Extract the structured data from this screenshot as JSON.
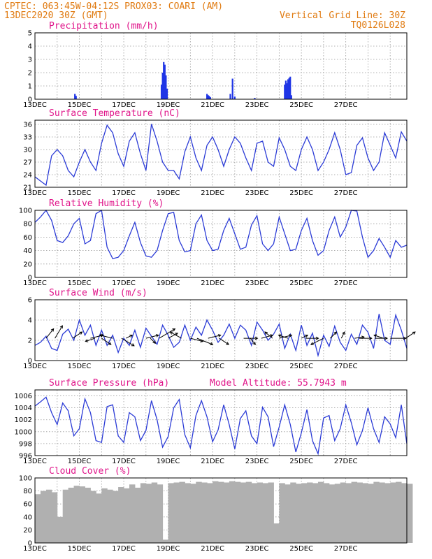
{
  "header": {
    "line1": "CPTEC:   063:45W-04:12S   PROX03: COARI (AM)",
    "line2": "13DEC2020 30Z (GMT)",
    "grid_note": "Vertical Grid Line: 30Z",
    "code": "TQ0126L028"
  },
  "colors": {
    "header": "#e07a10",
    "panel_title": "#e0158a",
    "line": "#2b3bd6",
    "bar": "#1f35e6",
    "cloud": "#b0b0b0"
  },
  "chart_data": [
    {
      "type": "bar",
      "title": "Precipitation (mm/h)",
      "ylim": [
        0,
        5
      ],
      "yticks": [
        0,
        1,
        2,
        3,
        4,
        5
      ],
      "xticklabels": [
        "13DEC",
        "15DEC",
        "17DEC",
        "19DEC",
        "21DEC",
        "23DEC",
        "25DEC",
        "27DEC"
      ],
      "x": [
        1.8,
        1.85,
        5.7,
        5.75,
        5.8,
        5.85,
        5.9,
        5.95,
        7.75,
        7.8,
        7.85,
        7.9,
        8.8,
        8.9,
        9.0,
        9.9,
        11.25,
        11.3,
        11.35,
        11.4,
        11.45,
        11.5,
        11.55
      ],
      "values": [
        0.4,
        0.25,
        1.1,
        2.0,
        2.8,
        2.6,
        1.8,
        0.8,
        0.4,
        0.3,
        0.25,
        0.15,
        0.4,
        1.55,
        0.2,
        0.1,
        1.1,
        1.4,
        1.2,
        1.5,
        1.6,
        1.7,
        0.3
      ]
    },
    {
      "type": "line",
      "title": "Surface Temperature (nC)",
      "ylim": [
        21,
        37
      ],
      "yticks": [
        21,
        24,
        27,
        30,
        33,
        36
      ],
      "xticklabels": [
        "13DEC",
        "15DEC",
        "17DEC",
        "19DEC",
        "21DEC",
        "23DEC",
        "25DEC",
        "27DEC"
      ],
      "x": [
        0,
        0.25,
        0.5,
        0.75,
        1.0,
        1.25,
        1.5,
        1.75,
        2.0,
        2.25,
        2.5,
        2.75,
        3.0,
        3.25,
        3.5,
        3.75,
        4.0,
        4.25,
        4.5,
        4.75,
        5.0,
        5.25,
        5.5,
        5.75,
        6.0,
        6.25,
        6.5,
        6.75,
        7.0,
        7.25,
        7.5,
        7.75,
        8.0,
        8.25,
        8.5,
        8.75,
        9.0,
        9.25,
        9.5,
        9.75,
        10.0,
        10.25,
        10.5,
        10.75,
        11.0,
        11.25,
        11.5,
        11.75,
        12.0,
        12.25,
        12.5,
        12.75,
        13.0,
        13.25,
        13.5,
        13.75,
        14.0,
        14.25,
        14.5,
        14.75,
        15.0,
        15.25,
        15.5,
        15.75,
        16.0,
        16.25,
        16.5,
        16.75
      ],
      "values": [
        23.5,
        22.5,
        21.5,
        28.5,
        30,
        28.5,
        25,
        23.5,
        27,
        30,
        27,
        25,
        31.5,
        35.8,
        34,
        29,
        26,
        32,
        34,
        29,
        25,
        36.1,
        32,
        27,
        25,
        25,
        23,
        29.5,
        33,
        28,
        25,
        31,
        33,
        30,
        26,
        30,
        33,
        31.5,
        28,
        25,
        31.5,
        32,
        27,
        26,
        32.8,
        30,
        26,
        25,
        30,
        33,
        30,
        25,
        27,
        30,
        34,
        30,
        24,
        24.5,
        31,
        32.8,
        28,
        25,
        27,
        34,
        31,
        28,
        34.2,
        32
      ]
    },
    {
      "type": "line",
      "title": "Relative Humidity (%)",
      "ylim": [
        0,
        100
      ],
      "yticks": [
        0,
        20,
        40,
        60,
        80,
        100
      ],
      "xticklabels": [
        "13DEC",
        "15DEC",
        "17DEC",
        "19DEC",
        "21DEC",
        "23DEC",
        "25DEC",
        "27DEC"
      ],
      "x": [
        0,
        0.25,
        0.5,
        0.75,
        1.0,
        1.25,
        1.5,
        1.75,
        2.0,
        2.25,
        2.5,
        2.75,
        3.0,
        3.25,
        3.5,
        3.75,
        4.0,
        4.25,
        4.5,
        4.75,
        5.0,
        5.25,
        5.5,
        5.75,
        6.0,
        6.25,
        6.5,
        6.75,
        7.0,
        7.25,
        7.5,
        7.75,
        8.0,
        8.25,
        8.5,
        8.75,
        9.0,
        9.25,
        9.5,
        9.75,
        10.0,
        10.25,
        10.5,
        10.75,
        11.0,
        11.25,
        11.5,
        11.75,
        12.0,
        12.25,
        12.5,
        12.75,
        13.0,
        13.25,
        13.5,
        13.75,
        14.0,
        14.25,
        14.5,
        14.75,
        15.0,
        15.25,
        15.5,
        15.75,
        16.0,
        16.25,
        16.5,
        16.75
      ],
      "values": [
        82,
        90,
        100,
        85,
        55,
        52,
        62,
        80,
        88,
        50,
        55,
        95,
        100,
        45,
        28,
        30,
        40,
        62,
        82,
        52,
        32,
        30,
        40,
        70,
        95,
        97,
        55,
        38,
        40,
        80,
        93,
        55,
        40,
        42,
        70,
        88,
        65,
        42,
        45,
        78,
        92,
        50,
        40,
        50,
        90,
        65,
        40,
        42,
        70,
        88,
        55,
        33,
        40,
        70,
        90,
        60,
        75,
        100,
        99,
        60,
        30,
        40,
        58,
        45,
        30,
        55,
        45,
        48
      ]
    },
    {
      "type": "line",
      "title": "Surface Wind (m/s)",
      "ylim": [
        0,
        6
      ],
      "yticks": [
        0,
        2,
        4,
        6
      ],
      "xticklabels": [
        "13DEC",
        "15DEC",
        "17DEC",
        "19DEC",
        "21DEC",
        "23DEC",
        "25DEC",
        "27DEC"
      ],
      "x": [
        0,
        0.25,
        0.5,
        0.75,
        1.0,
        1.25,
        1.5,
        1.75,
        2.0,
        2.25,
        2.5,
        2.75,
        3.0,
        3.25,
        3.5,
        3.75,
        4.0,
        4.25,
        4.5,
        4.75,
        5.0,
        5.25,
        5.5,
        5.75,
        6.0,
        6.25,
        6.5,
        6.75,
        7.0,
        7.25,
        7.5,
        7.75,
        8.0,
        8.25,
        8.5,
        8.75,
        9.0,
        9.25,
        9.5,
        9.75,
        10.0,
        10.25,
        10.5,
        10.75,
        11.0,
        11.25,
        11.5,
        11.75,
        12.0,
        12.25,
        12.5,
        12.75,
        13.0,
        13.25,
        13.5,
        13.75,
        14.0,
        14.25,
        14.5,
        14.75,
        15.0,
        15.25,
        15.5,
        15.75,
        16.0,
        16.25,
        16.5,
        16.75
      ],
      "values": [
        1.5,
        1.8,
        2.4,
        1.2,
        1.0,
        2.6,
        3.1,
        2.0,
        4.0,
        2.5,
        3.5,
        1.5,
        3.0,
        1.5,
        2.5,
        0.8,
        2.2,
        1.5,
        3.0,
        1.3,
        3.2,
        2.4,
        1.6,
        3.5,
        2.5,
        1.3,
        1.8,
        3.5,
        2.0,
        3.3,
        2.5,
        4.0,
        3.0,
        1.8,
        2.5,
        3.6,
        2.2,
        3.5,
        3.0,
        1.5,
        3.8,
        3.0,
        2.0,
        2.6,
        3.6,
        1.2,
        2.6,
        1.0,
        3.5,
        1.5,
        2.7,
        0.5,
        2.5,
        1.4,
        3.4,
        1.8,
        1.0,
        2.6,
        1.6,
        3.5,
        2.8,
        1.2,
        4.6,
        2.0,
        1.6,
        4.5,
        3.0,
        1.2
      ]
    },
    {
      "type": "line",
      "title": "Surface Pressure (hPa)",
      "annotation": "Model Altitude: 55.7943 m",
      "ylim": [
        996,
        1007
      ],
      "yticks": [
        996,
        998,
        1000,
        1002,
        1004,
        1006
      ],
      "xticklabels": [
        "13DEC",
        "15DEC",
        "17DEC",
        "19DEC",
        "21DEC",
        "23DEC",
        "25DEC",
        "27DEC"
      ],
      "x": [
        0,
        0.25,
        0.5,
        0.75,
        1.0,
        1.25,
        1.5,
        1.75,
        2.0,
        2.25,
        2.5,
        2.75,
        3.0,
        3.25,
        3.5,
        3.75,
        4.0,
        4.25,
        4.5,
        4.75,
        5.0,
        5.25,
        5.5,
        5.75,
        6.0,
        6.25,
        6.5,
        6.75,
        7.0,
        7.25,
        7.5,
        7.75,
        8.0,
        8.25,
        8.5,
        8.75,
        9.0,
        9.25,
        9.5,
        9.75,
        10.0,
        10.25,
        10.5,
        10.75,
        11.0,
        11.25,
        11.5,
        11.75,
        12.0,
        12.25,
        12.5,
        12.75,
        13.0,
        13.25,
        13.5,
        13.75,
        14.0,
        14.25,
        14.5,
        14.75,
        15.0,
        15.25,
        15.5,
        15.75,
        16.0,
        16.25,
        16.5,
        16.75
      ],
      "values": [
        1004.3,
        1005,
        1005.8,
        1003.2,
        1001.2,
        1004.8,
        1003.5,
        999.3,
        1000.5,
        1005.5,
        1003.2,
        998.5,
        998.2,
        1004.2,
        1004.5,
        999.3,
        998.2,
        1003.2,
        1002.5,
        998.5,
        1000.2,
        1005.2,
        1002,
        997.4,
        999.2,
        1004,
        1005.4,
        999.5,
        997.3,
        1002.7,
        1005.2,
        1002.5,
        998.3,
        1000.3,
        1004.5,
        1001.2,
        997.1,
        1002.2,
        1003.5,
        999.3,
        998,
        1004.1,
        1002.5,
        997.5,
        1000.8,
        1004.5,
        1001.2,
        996.6,
        999.8,
        1003.7,
        998.5,
        996.3,
        1002.3,
        1002.7,
        998.5,
        1000.5,
        1004.5,
        1001.5,
        997.8,
        1000.2,
        1004,
        1000.5,
        998.2,
        1002.5,
        1001.3,
        999,
        1004.5,
        998
      ]
    },
    {
      "type": "bar",
      "title": "Cloud Cover (%)",
      "ylim": [
        0,
        100
      ],
      "yticks": [
        0,
        20,
        40,
        60,
        80,
        100
      ],
      "xticklabels": [
        "13DEC",
        "15DEC",
        "17DEC",
        "19DEC",
        "21DEC",
        "23DEC",
        "25DEC",
        "27DEC"
      ],
      "x": [
        0,
        0.25,
        0.5,
        0.75,
        1.0,
        1.25,
        1.5,
        1.75,
        2.0,
        2.25,
        2.5,
        2.75,
        3.0,
        3.25,
        3.5,
        3.75,
        4.0,
        4.25,
        4.5,
        4.75,
        5.0,
        5.25,
        5.5,
        5.75,
        6.0,
        6.25,
        6.5,
        6.75,
        7.0,
        7.25,
        7.5,
        7.75,
        8.0,
        8.25,
        8.5,
        8.75,
        9.0,
        9.25,
        9.5,
        9.75,
        10.0,
        10.25,
        10.5,
        10.75,
        11.0,
        11.25,
        11.5,
        11.75,
        12.0,
        12.25,
        12.5,
        12.75,
        13.0,
        13.25,
        13.5,
        13.75,
        14.0,
        14.25,
        14.5,
        14.75,
        15.0,
        15.25,
        15.5,
        15.75,
        16.0,
        16.25,
        16.5,
        16.75
      ],
      "values": [
        75,
        80,
        82,
        78,
        40,
        82,
        85,
        88,
        87,
        85,
        80,
        76,
        84,
        82,
        80,
        86,
        84,
        90,
        85,
        92,
        91,
        93,
        90,
        5,
        92,
        93,
        94,
        92,
        91,
        94,
        93,
        92,
        95,
        94,
        93,
        95,
        94,
        93,
        94,
        92,
        93,
        92,
        93,
        30,
        92,
        90,
        93,
        91,
        92,
        93,
        92,
        94,
        92,
        90,
        91,
        93,
        92,
        94,
        93,
        92,
        91,
        94,
        93,
        92,
        93,
        94,
        92,
        91
      ]
    }
  ],
  "wind_arrows": {
    "x": [
      0.5,
      0.9,
      1.7,
      2.5,
      2.7,
      3.0,
      3.5,
      3.9,
      4.1,
      5.0,
      5.2,
      5.6,
      6.0,
      6.6,
      7.0,
      7.3,
      7.8,
      8.3,
      9.4,
      9.7,
      10.2,
      10.7,
      11.0,
      11.4,
      12.0,
      12.2,
      13.0,
      13.3,
      13.8,
      14.4,
      14.6,
      15.3,
      15.7,
      16.0,
      16.7
    ],
    "u": [
      1.2,
      1.2,
      1.5,
      2.0,
      -1.5,
      1.5,
      -2.0,
      2.0,
      1.0,
      2.0,
      0.8,
      2.5,
      1.5,
      -1.8,
      2.0,
      2.5,
      2.0,
      1.5,
      2.2,
      0.8,
      1.8,
      -1.2,
      2.0,
      -1.5,
      1.0,
      2.0,
      -2.0,
      1.0,
      0.5,
      1.5,
      2.0,
      2.0,
      -1.5,
      2.5,
      1.5
    ],
    "v": [
      1.5,
      2.0,
      1.0,
      0.5,
      -0.5,
      -1.0,
      0.5,
      -1.2,
      0.5,
      0.5,
      -0.8,
      1.5,
      0.8,
      1.0,
      -0.5,
      -1.0,
      0.5,
      -1.0,
      0.0,
      -1.0,
      0.5,
      1.0,
      0.5,
      0.5,
      0.5,
      0.0,
      -1.0,
      1.0,
      1.0,
      0.2,
      0.0,
      0.0,
      0.5,
      0.0,
      1.0
    ]
  }
}
